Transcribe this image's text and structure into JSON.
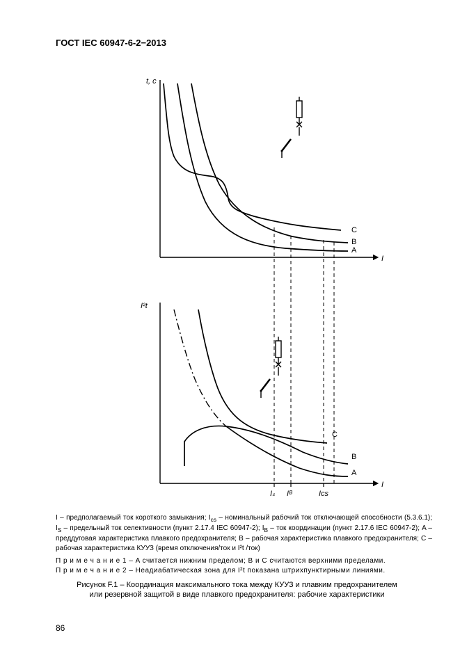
{
  "header": "ГОСТ IEC 60947-6-2−2013",
  "page_number": "86",
  "chart_top": {
    "type": "line",
    "x_axis_label": "I",
    "y_axis_label": "t, с",
    "curves": {
      "A": {
        "label": "A"
      },
      "B": {
        "label": "B"
      },
      "C": {
        "label": "C"
      }
    },
    "axis_color": "#000000",
    "line_color": "#000000",
    "dash_color": "#000000",
    "stroke_width_axis": 1.4,
    "stroke_width_curve": 1.6,
    "arrow_size": 6
  },
  "chart_bottom": {
    "type": "line",
    "x_axis_label": "I",
    "y_axis_label": "I²t",
    "ticks": {
      "IS": "Iₛ",
      "IB": "Iᴮ",
      "Ics": "Ics"
    },
    "curves": {
      "A": {
        "label": "A"
      },
      "B": {
        "label": "B"
      },
      "C": {
        "label": "C"
      }
    },
    "axis_color": "#000000",
    "line_color": "#000000",
    "dash_color": "#000000",
    "stroke_width_axis": 1.4,
    "stroke_width_curve": 1.6,
    "arrow_size": 6
  },
  "legend_html": "I – предполагаемый ток короткого замыкания; I<sub>cs</sub> – номинальный рабочий ток отключающей способности (5.3.6.1); I<sub>S</sub> – предельный ток селективности (пункт 2.17.4 IEC 60947-2); I<sub>B</sub> – ток координации (пункт 2.17.6 IEC 60947-2); A – преддуговая характеристика плавкого предохранителя; B – рабочая характеристика плавкого предохранителя; C – рабочая характеристика КУУЗ (время отключения/ток и I²t /ток)",
  "note1": "П р и м е ч а н и е  1 – A считается нижним пределом; B и C считаются верхними пределами.",
  "note2": "П р и м е ч а н и е  2 – Неадиабатическая зона для I²t показана штрихпунктирными линиями.",
  "caption_line1": "Рисунок F.1 – Координация максимального тока между КУУЗ и плавким предохранителем",
  "caption_line2": "или резервной защитой в виде плавкого предохранителя: рабочие характеристики"
}
